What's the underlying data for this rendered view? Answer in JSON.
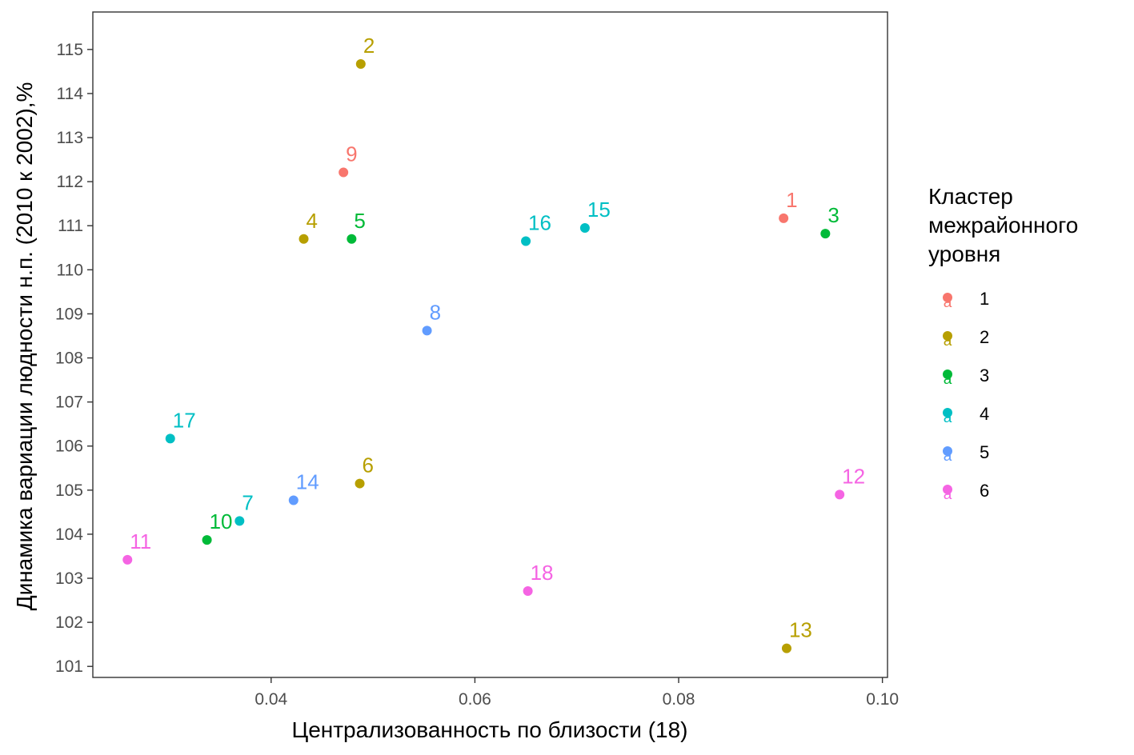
{
  "chart_data": {
    "type": "scatter",
    "xlabel": "Централизованность по близости (18)",
    "ylabel": "Динамика вариации людности н.п. (2010 к 2002),%",
    "xlim": [
      0.0225,
      0.1005
    ],
    "ylim": [
      100.75,
      115.85
    ],
    "x_ticks": [
      0.04,
      0.06,
      0.08,
      0.1
    ],
    "x_tick_labels": [
      "0.04",
      "0.06",
      "0.08",
      "0.10"
    ],
    "y_ticks": [
      101,
      102,
      103,
      104,
      105,
      106,
      107,
      108,
      109,
      110,
      111,
      112,
      113,
      114,
      115
    ],
    "y_tick_labels": [
      "101",
      "102",
      "103",
      "104",
      "105",
      "106",
      "107",
      "108",
      "109",
      "110",
      "111",
      "112",
      "113",
      "114",
      "115"
    ],
    "grid": false,
    "legend": {
      "title_lines": [
        "Кластер",
        "межрайонного",
        "уровня"
      ],
      "placement": "right",
      "key_glyph": "a",
      "entries": [
        {
          "label": "1",
          "color": "#F8766D"
        },
        {
          "label": "2",
          "color": "#B79F00"
        },
        {
          "label": "3",
          "color": "#00BA38"
        },
        {
          "label": "4",
          "color": "#00BFC4"
        },
        {
          "label": "5",
          "color": "#619CFF"
        },
        {
          "label": "6",
          "color": "#F564E3"
        }
      ]
    },
    "points": [
      {
        "label": "1",
        "x": 0.0903,
        "y": 111.17,
        "cluster": "1"
      },
      {
        "label": "2",
        "x": 0.0488,
        "y": 114.67,
        "cluster": "2"
      },
      {
        "label": "3",
        "x": 0.0944,
        "y": 110.82,
        "cluster": "3"
      },
      {
        "label": "4",
        "x": 0.0432,
        "y": 110.7,
        "cluster": "2"
      },
      {
        "label": "5",
        "x": 0.0479,
        "y": 110.7,
        "cluster": "3"
      },
      {
        "label": "6",
        "x": 0.0487,
        "y": 105.15,
        "cluster": "2"
      },
      {
        "label": "7",
        "x": 0.0369,
        "y": 104.3,
        "cluster": "4"
      },
      {
        "label": "8",
        "x": 0.0553,
        "y": 108.62,
        "cluster": "5"
      },
      {
        "label": "9",
        "x": 0.0471,
        "y": 112.21,
        "cluster": "1"
      },
      {
        "label": "10",
        "x": 0.0337,
        "y": 103.87,
        "cluster": "3"
      },
      {
        "label": "11",
        "x": 0.0259,
        "y": 103.42,
        "cluster": "6"
      },
      {
        "label": "12",
        "x": 0.0958,
        "y": 104.9,
        "cluster": "6"
      },
      {
        "label": "13",
        "x": 0.0906,
        "y": 101.41,
        "cluster": "2"
      },
      {
        "label": "14",
        "x": 0.0422,
        "y": 104.77,
        "cluster": "5"
      },
      {
        "label": "15",
        "x": 0.0708,
        "y": 110.95,
        "cluster": "4"
      },
      {
        "label": "16",
        "x": 0.065,
        "y": 110.65,
        "cluster": "4"
      },
      {
        "label": "17",
        "x": 0.0301,
        "y": 106.17,
        "cluster": "4"
      },
      {
        "label": "18",
        "x": 0.0652,
        "y": 102.71,
        "cluster": "6"
      }
    ]
  }
}
